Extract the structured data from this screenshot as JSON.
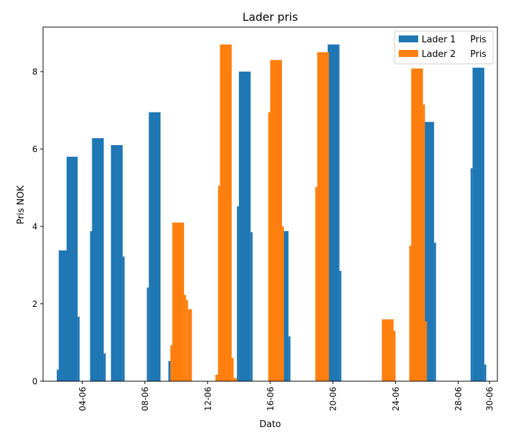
{
  "chart_data": {
    "type": "bar",
    "title": "Lader pris",
    "xlabel": "Dato",
    "ylabel": "Pris NOK",
    "xlim": [
      "2023-06-01T12:00",
      "2023-06-30T12:00"
    ],
    "ylim": [
      0,
      9.15
    ],
    "yticks": [
      0,
      2,
      4,
      6,
      8
    ],
    "xticks": [
      "04-06",
      "08-06",
      "12-06",
      "16-06",
      "20-06",
      "24-06",
      "28-06",
      "30-06"
    ],
    "xtick_dates": [
      "2023-06-04",
      "2023-06-08",
      "2023-06-12",
      "2023-06-16",
      "2023-06-20",
      "2023-06-24",
      "2023-06-28",
      "2023-06-30"
    ],
    "legend": {
      "position": "top-right",
      "entries": [
        "Lader 1     Pris",
        "Lader 2     Pris"
      ]
    },
    "series": [
      {
        "name": "Lader 1     Pris",
        "color": "#1f77b4",
        "bars": [
          {
            "start": "2023-06-02T09:00",
            "end": "2023-06-02T12:00",
            "value": 0.3
          },
          {
            "start": "2023-06-02T12:00",
            "end": "2023-06-03T06:00",
            "value": 3.38
          },
          {
            "start": "2023-06-03T00:00",
            "end": "2023-06-03T17:00",
            "value": 5.8
          },
          {
            "start": "2023-06-03T17:00",
            "end": "2023-06-03T20:00",
            "value": 1.67
          },
          {
            "start": "2023-06-04T12:00",
            "end": "2023-06-04T15:00",
            "value": 3.88
          },
          {
            "start": "2023-06-04T15:00",
            "end": "2023-06-05T09:00",
            "value": 6.28
          },
          {
            "start": "2023-06-05T09:00",
            "end": "2023-06-05T12:00",
            "value": 0.72
          },
          {
            "start": "2023-06-05T20:00",
            "end": "2023-06-06T14:00",
            "value": 6.1
          },
          {
            "start": "2023-06-06T14:00",
            "end": "2023-06-06T17:00",
            "value": 3.22
          },
          {
            "start": "2023-06-08T03:00",
            "end": "2023-06-08T06:00",
            "value": 2.42
          },
          {
            "start": "2023-06-08T06:00",
            "end": "2023-06-09T00:00",
            "value": 6.95
          },
          {
            "start": "2023-06-09T12:00",
            "end": "2023-06-09T16:00",
            "value": 0.52
          },
          {
            "start": "2023-06-13T21:00",
            "end": "2023-06-14T00:00",
            "value": 4.52
          },
          {
            "start": "2023-06-14T00:00",
            "end": "2023-06-14T18:00",
            "value": 8.0
          },
          {
            "start": "2023-06-14T18:00",
            "end": "2023-06-14T21:00",
            "value": 3.85
          },
          {
            "start": "2023-06-16T13:00",
            "end": "2023-06-17T04:00",
            "value": 3.88
          },
          {
            "start": "2023-06-17T04:00",
            "end": "2023-06-17T07:00",
            "value": 1.16
          },
          {
            "start": "2023-06-19T13:00",
            "end": "2023-06-19T16:00",
            "value": 2.55
          },
          {
            "start": "2023-06-19T16:00",
            "end": "2023-06-20T10:00",
            "value": 8.7
          },
          {
            "start": "2023-06-20T10:00",
            "end": "2023-06-20T13:00",
            "value": 2.85
          },
          {
            "start": "2023-06-25T17:00",
            "end": "2023-06-26T11:00",
            "value": 6.7
          },
          {
            "start": "2023-06-26T11:00",
            "end": "2023-06-26T14:00",
            "value": 3.58
          },
          {
            "start": "2023-06-28T19:00",
            "end": "2023-06-28T22:00",
            "value": 5.5
          },
          {
            "start": "2023-06-28T22:00",
            "end": "2023-06-29T16:00",
            "value": 8.1
          },
          {
            "start": "2023-06-29T16:00",
            "end": "2023-06-29T19:00",
            "value": 0.43
          }
        ]
      },
      {
        "name": "Lader 2     Pris",
        "color": "#ff7f0e",
        "bars": [
          {
            "start": "2023-06-09T15:00",
            "end": "2023-06-09T18:00",
            "value": 0.93
          },
          {
            "start": "2023-06-09T18:00",
            "end": "2023-06-10T12:00",
            "value": 4.1
          },
          {
            "start": "2023-06-10T12:00",
            "end": "2023-06-10T15:00",
            "value": 2.23
          },
          {
            "start": "2023-06-10T15:00",
            "end": "2023-06-10T18:00",
            "value": 2.1
          },
          {
            "start": "2023-06-10T18:00",
            "end": "2023-06-11T00:00",
            "value": 1.86
          },
          {
            "start": "2023-06-12T12:00",
            "end": "2023-06-12T16:00",
            "value": 0.17
          },
          {
            "start": "2023-06-12T16:00",
            "end": "2023-06-12T19:00",
            "value": 5.05
          },
          {
            "start": "2023-06-12T19:00",
            "end": "2023-06-13T13:00",
            "value": 8.7
          },
          {
            "start": "2023-06-13T13:00",
            "end": "2023-06-13T16:00",
            "value": 0.6
          },
          {
            "start": "2023-06-13T16:00",
            "end": "2023-06-13T21:00",
            "value": 0.08
          },
          {
            "start": "2023-06-15T21:00",
            "end": "2023-06-16T00:00",
            "value": 6.95
          },
          {
            "start": "2023-06-16T00:00",
            "end": "2023-06-16T18:00",
            "value": 8.3
          },
          {
            "start": "2023-06-16T18:00",
            "end": "2023-06-16T21:00",
            "value": 4.0
          },
          {
            "start": "2023-06-18T21:00",
            "end": "2023-06-19T00:00",
            "value": 5.02
          },
          {
            "start": "2023-06-19T00:00",
            "end": "2023-06-19T18:00",
            "value": 8.5
          },
          {
            "start": "2023-06-23T03:00",
            "end": "2023-06-23T21:00",
            "value": 1.6
          },
          {
            "start": "2023-06-23T21:00",
            "end": "2023-06-24T00:00",
            "value": 1.3
          },
          {
            "start": "2023-06-24T21:00",
            "end": "2023-06-25T00:00",
            "value": 3.5
          },
          {
            "start": "2023-06-25T00:00",
            "end": "2023-06-25T18:00",
            "value": 8.08
          },
          {
            "start": "2023-06-25T18:00",
            "end": "2023-06-25T21:00",
            "value": 7.15
          },
          {
            "start": "2023-06-25T21:00",
            "end": "2023-06-26T00:00",
            "value": 1.55
          }
        ]
      }
    ]
  }
}
